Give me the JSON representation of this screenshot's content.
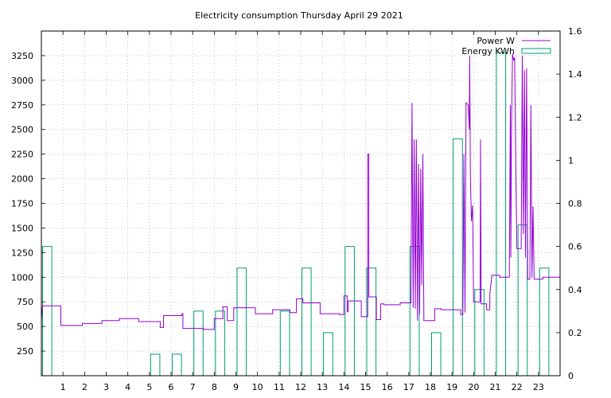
{
  "chart_data": {
    "type": "line",
    "title": "Electricity consumption Thursday April 29 2021",
    "xlabel": "",
    "ylabel": "",
    "y2label": "",
    "grid": true,
    "legend_position": "top-right",
    "x_ticks": [
      1,
      2,
      3,
      4,
      5,
      6,
      7,
      8,
      9,
      10,
      11,
      12,
      13,
      14,
      15,
      16,
      17,
      18,
      19,
      20,
      21,
      22,
      23
    ],
    "y_ticks": [
      250,
      500,
      750,
      1000,
      1250,
      1500,
      1750,
      2000,
      2250,
      2500,
      2750,
      3000,
      3250
    ],
    "y2_ticks": [
      0,
      0.2,
      0.4,
      0.6,
      0.8,
      1,
      1.2,
      1.4,
      1.6
    ],
    "xlim": [
      0,
      24
    ],
    "ylim": [
      0,
      3500
    ],
    "y2lim": [
      0,
      1.6
    ],
    "series": [
      {
        "name": "Power W",
        "axis": "left",
        "color": "#9400d3",
        "style": "step",
        "points": [
          [
            0,
            560
          ],
          [
            0.05,
            710
          ],
          [
            0.9,
            710
          ],
          [
            0.9,
            510
          ],
          [
            1.9,
            510
          ],
          [
            1.9,
            530
          ],
          [
            2.8,
            530
          ],
          [
            2.8,
            560
          ],
          [
            3.6,
            560
          ],
          [
            3.6,
            580
          ],
          [
            4.5,
            580
          ],
          [
            4.5,
            550
          ],
          [
            5.5,
            550
          ],
          [
            5.5,
            490
          ],
          [
            5.65,
            490
          ],
          [
            5.65,
            610
          ],
          [
            6.5,
            610
          ],
          [
            6.5,
            630
          ],
          [
            6.55,
            630
          ],
          [
            6.55,
            480
          ],
          [
            7.5,
            480
          ],
          [
            7.5,
            470
          ],
          [
            8.0,
            470
          ],
          [
            8.0,
            580
          ],
          [
            8.4,
            580
          ],
          [
            8.4,
            700
          ],
          [
            8.6,
            700
          ],
          [
            8.6,
            560
          ],
          [
            8.9,
            560
          ],
          [
            8.9,
            690
          ],
          [
            9.9,
            690
          ],
          [
            9.9,
            630
          ],
          [
            10.7,
            630
          ],
          [
            10.7,
            670
          ],
          [
            11.5,
            670
          ],
          [
            11.5,
            640
          ],
          [
            11.8,
            640
          ],
          [
            11.8,
            780
          ],
          [
            12.1,
            780
          ],
          [
            12.1,
            740
          ],
          [
            12.9,
            740
          ],
          [
            12.9,
            630
          ],
          [
            13.8,
            630
          ],
          [
            13.8,
            620
          ],
          [
            14.0,
            620
          ],
          [
            14.0,
            810
          ],
          [
            14.15,
            810
          ],
          [
            14.15,
            650
          ],
          [
            14.2,
            650
          ],
          [
            14.2,
            760
          ],
          [
            14.8,
            760
          ],
          [
            14.8,
            600
          ],
          [
            15.1,
            600
          ],
          [
            15.1,
            2250
          ],
          [
            15.15,
            2250
          ],
          [
            15.15,
            800
          ],
          [
            15.5,
            800
          ],
          [
            15.5,
            570
          ],
          [
            15.7,
            570
          ],
          [
            15.7,
            730
          ],
          [
            15.85,
            730
          ],
          [
            15.85,
            720
          ],
          [
            16.6,
            720
          ],
          [
            16.6,
            740
          ],
          [
            17.1,
            740
          ],
          [
            17.15,
            2770
          ],
          [
            17.2,
            690
          ],
          [
            17.25,
            2400
          ],
          [
            17.3,
            680
          ],
          [
            17.35,
            2400
          ],
          [
            17.4,
            560
          ],
          [
            17.45,
            2150
          ],
          [
            17.5,
            620
          ],
          [
            17.55,
            2100
          ],
          [
            17.6,
            920
          ],
          [
            17.65,
            2250
          ],
          [
            17.7,
            560
          ],
          [
            18.2,
            560
          ],
          [
            18.2,
            680
          ],
          [
            18.5,
            680
          ],
          [
            18.5,
            670
          ],
          [
            19.4,
            670
          ],
          [
            19.4,
            620
          ],
          [
            19.5,
            620
          ],
          [
            19.55,
            2250
          ],
          [
            19.6,
            640
          ],
          [
            19.65,
            2770
          ],
          [
            19.75,
            2750
          ],
          [
            19.8,
            2500
          ],
          [
            19.82,
            3250
          ],
          [
            19.85,
            2000
          ],
          [
            19.9,
            1570
          ],
          [
            19.95,
            1730
          ],
          [
            20.0,
            750
          ],
          [
            20.3,
            750
          ],
          [
            20.32,
            2400
          ],
          [
            20.35,
            730
          ],
          [
            20.6,
            730
          ],
          [
            20.6,
            670
          ],
          [
            20.75,
            670
          ],
          [
            20.75,
            830
          ],
          [
            20.85,
            1020
          ],
          [
            21.2,
            1020
          ],
          [
            21.2,
            1000
          ],
          [
            21.65,
            1000
          ],
          [
            21.7,
            2750
          ],
          [
            21.72,
            1200
          ],
          [
            21.75,
            2500
          ],
          [
            21.8,
            3270
          ],
          [
            21.85,
            3200
          ],
          [
            21.9,
            3230
          ],
          [
            21.95,
            2120
          ],
          [
            22.0,
            1290
          ],
          [
            22.2,
            1290
          ],
          [
            22.25,
            3250
          ],
          [
            22.3,
            1440
          ],
          [
            22.35,
            3100
          ],
          [
            22.4,
            1200
          ],
          [
            22.45,
            3120
          ],
          [
            22.5,
            980
          ],
          [
            22.6,
            980
          ],
          [
            22.65,
            2750
          ],
          [
            22.7,
            1000
          ],
          [
            22.75,
            1720
          ],
          [
            22.8,
            980
          ],
          [
            23.2,
            980
          ],
          [
            23.2,
            1000
          ],
          [
            24,
            1000
          ]
        ]
      },
      {
        "name": "Energy KWh",
        "axis": "right",
        "color": "#009e73",
        "style": "bars",
        "bars": [
          [
            0,
            0.6
          ],
          [
            5,
            0.1
          ],
          [
            6,
            0.1
          ],
          [
            7,
            0.3
          ],
          [
            8,
            0.3
          ],
          [
            9,
            0.5
          ],
          [
            11,
            0.3
          ],
          [
            12,
            0.5
          ],
          [
            13,
            0.2
          ],
          [
            14,
            0.6
          ],
          [
            15,
            0.5
          ],
          [
            17,
            0.6
          ],
          [
            18,
            0.2
          ],
          [
            19,
            1.1
          ],
          [
            20,
            0.4
          ],
          [
            21,
            1.5
          ],
          [
            22,
            0.7
          ],
          [
            23,
            0.5
          ]
        ]
      }
    ]
  }
}
